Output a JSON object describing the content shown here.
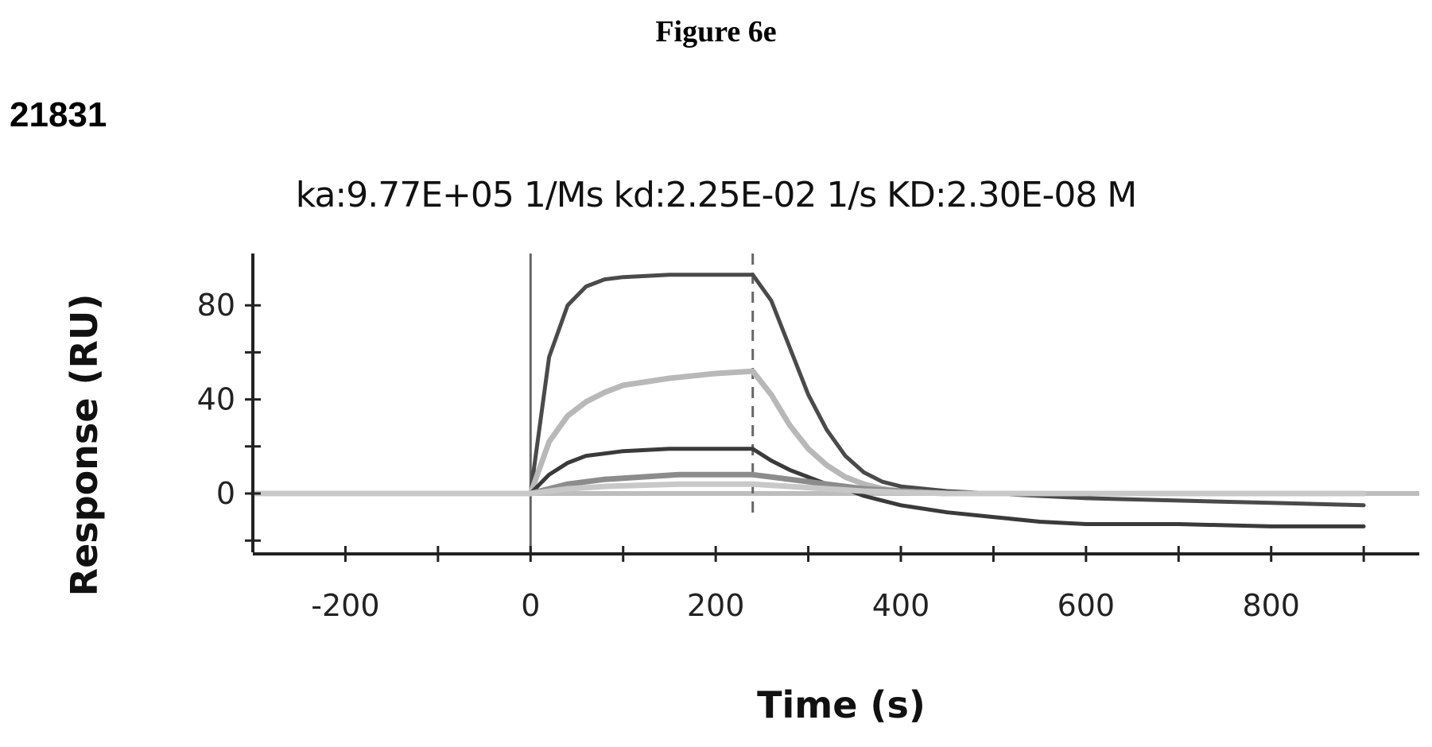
{
  "figure_label": "Figure 6e",
  "sample_id": "21831",
  "kinetics_text": "ka:9.77E+05 1/Ms  kd:2.25E-02 1/s  KD:2.30E-08 M",
  "chart_data": {
    "type": "line",
    "title": "ka:9.77E+05 1/Ms  kd:2.25E-02 1/s  KD:2.30E-08 M",
    "xlabel": "Time (s)",
    "ylabel": "Response (RU)",
    "xlim": [
      -300,
      960
    ],
    "ylim": [
      -25,
      100
    ],
    "x_ticks": [
      -200,
      0,
      200,
      400,
      600,
      800
    ],
    "x_minor_ticks": [
      -200,
      -100,
      0,
      100,
      200,
      300,
      400,
      500,
      600,
      700,
      800,
      900
    ],
    "y_ticks": [
      0,
      40,
      80
    ],
    "y_minor_ticks": [
      -20,
      0,
      20,
      40,
      60,
      80
    ],
    "injection_start": 0,
    "injection_end": 240,
    "grid": false,
    "series": [
      {
        "color": "#4a4a4a",
        "dark": true,
        "x": [
          -300,
          -200,
          -100,
          0,
          20,
          40,
          60,
          80,
          100,
          150,
          200,
          240,
          260,
          280,
          300,
          320,
          340,
          360,
          380,
          400,
          450,
          500,
          550,
          600,
          700,
          800,
          900
        ],
        "y": [
          0,
          0,
          0,
          0,
          58,
          80,
          88,
          91,
          92,
          93,
          93,
          93,
          82,
          62,
          42,
          27,
          16,
          9,
          5,
          3,
          1,
          0,
          -1,
          -2,
          -3,
          -4,
          -5
        ]
      },
      {
        "color": "#b8b8b8",
        "dark": false,
        "x": [
          -300,
          -200,
          -100,
          0,
          20,
          40,
          60,
          80,
          100,
          150,
          200,
          240,
          260,
          280,
          300,
          320,
          340,
          360,
          380,
          400,
          450,
          500,
          600,
          700,
          800,
          900
        ],
        "y": [
          0,
          0,
          0,
          0,
          22,
          33,
          39,
          43,
          46,
          49,
          51,
          52,
          42,
          29,
          19,
          12,
          7,
          4,
          2,
          1,
          0,
          0,
          0,
          0,
          0,
          0
        ]
      },
      {
        "color": "#3a3a3a",
        "dark": true,
        "x": [
          -300,
          -200,
          -100,
          0,
          20,
          40,
          60,
          80,
          100,
          150,
          200,
          240,
          260,
          280,
          300,
          320,
          340,
          360,
          380,
          400,
          450,
          500,
          550,
          600,
          700,
          800,
          900
        ],
        "y": [
          0,
          0,
          0,
          0,
          8,
          13,
          16,
          17,
          18,
          19,
          19,
          19,
          14,
          10,
          7,
          4,
          2,
          -1,
          -3,
          -5,
          -8,
          -10,
          -12,
          -13,
          -13,
          -14,
          -14
        ]
      },
      {
        "color": "#8c8c8c",
        "dark": false,
        "x": [
          -300,
          -200,
          -100,
          0,
          40,
          80,
          120,
          160,
          200,
          240,
          280,
          320,
          360,
          400,
          450,
          500,
          600,
          700,
          800,
          900
        ],
        "y": [
          0,
          0,
          0,
          0,
          4,
          6,
          7,
          8,
          8,
          8,
          6,
          4,
          2,
          1,
          0,
          0,
          0,
          0,
          0,
          0
        ]
      },
      {
        "color": "#c8c8c8",
        "dark": false,
        "x": [
          -300,
          -200,
          -100,
          0,
          40,
          80,
          120,
          160,
          200,
          240,
          280,
          320,
          360,
          400,
          450,
          500,
          600,
          700,
          800,
          900
        ],
        "y": [
          0,
          0,
          0,
          0,
          2,
          3,
          3.5,
          4,
          4,
          4,
          3,
          2,
          1,
          0.5,
          0,
          0,
          0,
          0,
          0,
          0
        ]
      }
    ]
  }
}
